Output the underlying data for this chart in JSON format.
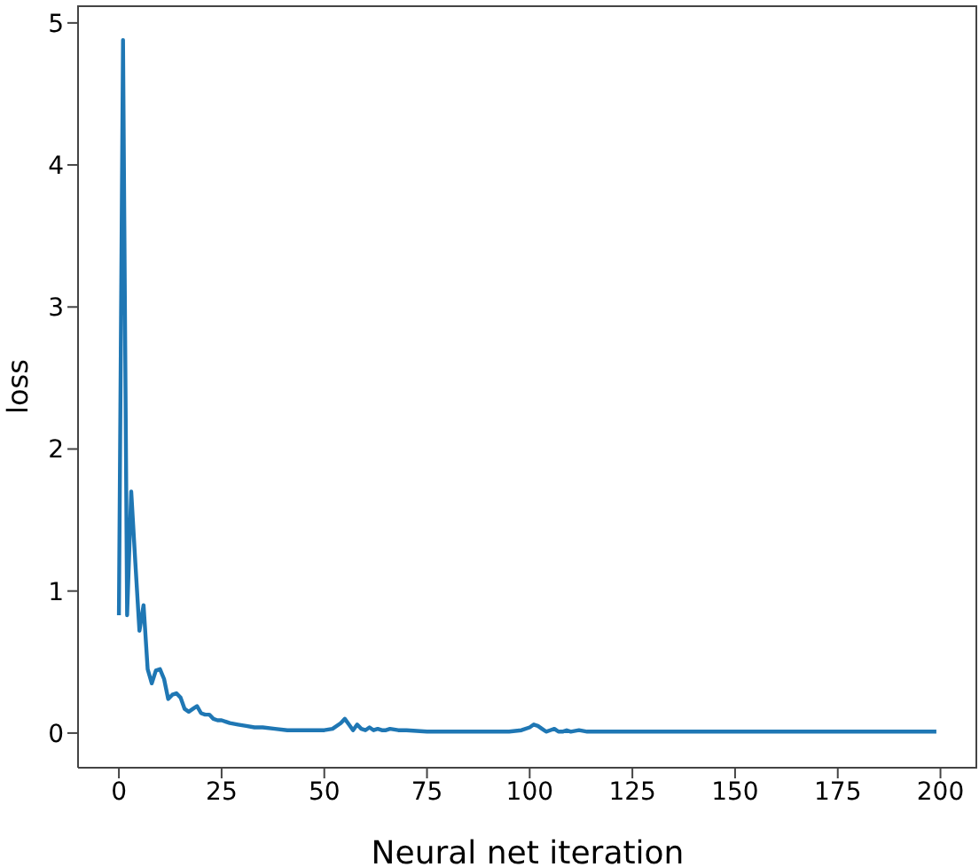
{
  "chart_data": {
    "type": "line",
    "xlabel": "Neural net iteration",
    "ylabel": "loss",
    "x": [
      0,
      1,
      2,
      3,
      4,
      5,
      6,
      7,
      8,
      9,
      10,
      11,
      12,
      13,
      14,
      15,
      16,
      17,
      18,
      19,
      20,
      21,
      22,
      23,
      24,
      25,
      27,
      29,
      31,
      33,
      35,
      38,
      41,
      44,
      47,
      50,
      52,
      54,
      55,
      56,
      57,
      58,
      59,
      60,
      61,
      62,
      63,
      64,
      65,
      66,
      68,
      70,
      75,
      80,
      85,
      90,
      95,
      98,
      100,
      101,
      102,
      103,
      104,
      105,
      106,
      107,
      108,
      109,
      110,
      112,
      114,
      116,
      118,
      120,
      125,
      130,
      140,
      150,
      160,
      175,
      199
    ],
    "series": [
      {
        "color": "#1f77b4",
        "values": [
          0.83,
          4.88,
          0.83,
          1.7,
          1.2,
          0.72,
          0.9,
          0.45,
          0.35,
          0.44,
          0.45,
          0.38,
          0.24,
          0.27,
          0.28,
          0.25,
          0.17,
          0.15,
          0.17,
          0.19,
          0.14,
          0.13,
          0.13,
          0.1,
          0.09,
          0.09,
          0.07,
          0.06,
          0.05,
          0.04,
          0.04,
          0.03,
          0.02,
          0.02,
          0.02,
          0.02,
          0.03,
          0.07,
          0.1,
          0.06,
          0.02,
          0.06,
          0.03,
          0.02,
          0.04,
          0.02,
          0.03,
          0.02,
          0.02,
          0.03,
          0.02,
          0.02,
          0.01,
          0.01,
          0.01,
          0.01,
          0.01,
          0.02,
          0.04,
          0.06,
          0.05,
          0.03,
          0.01,
          0.02,
          0.03,
          0.01,
          0.01,
          0.02,
          0.01,
          0.02,
          0.01,
          0.01,
          0.01,
          0.01,
          0.01,
          0.01,
          0.01,
          0.01,
          0.01,
          0.01,
          0.01
        ]
      }
    ],
    "xlim": [
      -9.95,
      208.95
    ],
    "xticks": [
      0,
      25,
      50,
      75,
      100,
      125,
      150,
      175,
      200
    ],
    "ylim": [
      -0.244,
      5.124
    ],
    "yticks": [
      0,
      1,
      2,
      3,
      4,
      5
    ],
    "grid": false,
    "marker": "none",
    "line_style": "solid"
  }
}
